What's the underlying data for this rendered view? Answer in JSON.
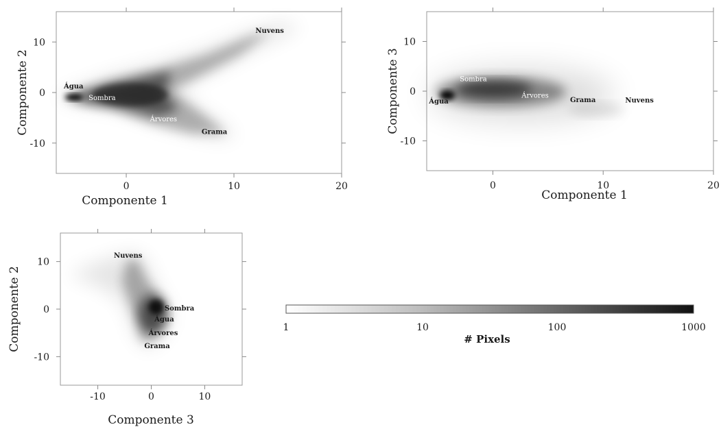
{
  "chart_data": [
    {
      "type": "heatmap",
      "id": "c1c2",
      "xlabel": "Componente 1",
      "ylabel": "Componente 2",
      "xlim": [
        -6.5,
        20
      ],
      "ylim": [
        -16,
        16
      ],
      "xticks": [
        "0",
        "10",
        "20"
      ],
      "yticks": [
        "10",
        "0",
        "-10"
      ],
      "xtick_values": [
        0,
        10,
        20
      ],
      "ytick_values": [
        10,
        0,
        -10
      ],
      "labels": [
        {
          "text": "Água",
          "x": -5.8,
          "y": 0.8
        },
        {
          "text": "Sombra",
          "x": -3.5,
          "y": -1.5
        },
        {
          "text": "Árvores",
          "x": 2.2,
          "y": -5.7
        },
        {
          "text": "Grama",
          "x": 7.0,
          "y": -8.2
        },
        {
          "text": "Nuvens",
          "x": 12.0,
          "y": 11.8
        }
      ]
    },
    {
      "type": "heatmap",
      "id": "c1c3",
      "xlabel": "Componente 1",
      "ylabel": "Componente 3",
      "xlim": [
        -6,
        20
      ],
      "ylim": [
        -16,
        16
      ],
      "xticks": [
        "0",
        "10",
        "20"
      ],
      "yticks": [
        "10",
        "0",
        "-10"
      ],
      "xtick_values": [
        0,
        10,
        20
      ],
      "ytick_values": [
        10,
        0,
        -10
      ],
      "labels": [
        {
          "text": "Sombra",
          "x": -3.0,
          "y": 2.0
        },
        {
          "text": "Água",
          "x": -5.8,
          "y": -2.5
        },
        {
          "text": "Árvores",
          "x": 2.6,
          "y": -1.3
        },
        {
          "text": "Grama",
          "x": 7.0,
          "y": -2.2
        },
        {
          "text": "Nuvens",
          "x": 12.0,
          "y": -2.3
        }
      ]
    },
    {
      "type": "heatmap",
      "id": "c3c2",
      "xlabel": "Componente 3",
      "ylabel": "Componente 2",
      "xlim": [
        -17,
        17
      ],
      "ylim": [
        -16,
        16
      ],
      "xticks": [
        "-10",
        "0",
        "10"
      ],
      "yticks": [
        "10",
        "0",
        "-10"
      ],
      "xtick_values": [
        -10,
        0,
        10
      ],
      "ytick_values": [
        10,
        0,
        -10
      ],
      "labels": [
        {
          "text": "Nuvens",
          "x": -7.0,
          "y": 10.8
        },
        {
          "text": "Sombra",
          "x": 2.5,
          "y": -0.3
        },
        {
          "text": "Água",
          "x": 0.6,
          "y": -2.6
        },
        {
          "text": "Árvores",
          "x": -0.5,
          "y": -5.5
        },
        {
          "text": "Grama",
          "x": -1.3,
          "y": -8.2
        }
      ]
    }
  ],
  "colorbar": {
    "title": "# Pixels",
    "tick_labels": [
      "1",
      "10",
      "100",
      "1000"
    ],
    "range": [
      1,
      1000
    ],
    "scale": "log",
    "colors": [
      "#ffffff",
      "#111111"
    ]
  }
}
